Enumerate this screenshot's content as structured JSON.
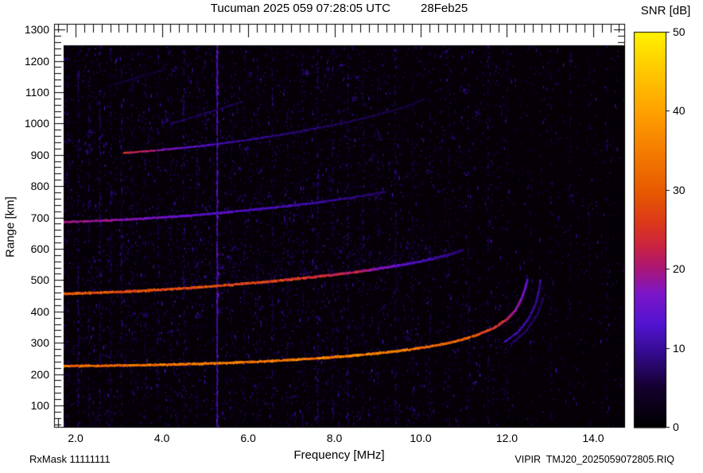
{
  "header": {
    "title": "Tucuman 2025 059 07:28:05 UTC",
    "date": "28Feb25"
  },
  "footer": {
    "rxmask": "RxMask 11111111",
    "file": "VIPIR  TMJ20_2025059072805.RIQ"
  },
  "chart_data": {
    "type": "heatmap",
    "title": "Tucuman 2025 059 07:28:05 UTC   28Feb25",
    "xlabel": "Frequency [MHz]",
    "ylabel": "Range [km]",
    "colorbar_label": "SNR [dB]",
    "xlim": [
      1.5,
      14.72
    ],
    "ylim": [
      31.5,
      1318
    ],
    "snr_range": [
      0,
      50
    ],
    "grid": false,
    "background": "black",
    "xticks": [
      {
        "v": 2,
        "label": "2.0"
      },
      {
        "v": 4,
        "label": "4.0"
      },
      {
        "v": 6,
        "label": "6.0"
      },
      {
        "v": 8,
        "label": "8.0"
      },
      {
        "v": 10,
        "label": "10.0"
      },
      {
        "v": 12,
        "label": "12.0"
      },
      {
        "v": 14,
        "label": "14.0"
      }
    ],
    "xtick_minor_start": 1.6,
    "xtick_minor_step": 0.2,
    "yticks": [
      {
        "v": 100,
        "label": "100"
      },
      {
        "v": 200,
        "label": "200"
      },
      {
        "v": 300,
        "label": "300"
      },
      {
        "v": 400,
        "label": "400"
      },
      {
        "v": 500,
        "label": "500"
      },
      {
        "v": 600,
        "label": "600"
      },
      {
        "v": 700,
        "label": "700"
      },
      {
        "v": 800,
        "label": "800"
      },
      {
        "v": 900,
        "label": "900"
      },
      {
        "v": 1000,
        "label": "1000"
      },
      {
        "v": 1100,
        "label": "1100"
      },
      {
        "v": 1200,
        "label": "1200"
      },
      {
        "v": 1300,
        "label": "1300"
      }
    ],
    "ytick_minor_start": 40,
    "ytick_minor_step": 20,
    "colorbar_ticks": [
      {
        "v": 0,
        "label": "0"
      },
      {
        "v": 10,
        "label": "10"
      },
      {
        "v": 20,
        "label": "20"
      },
      {
        "v": 30,
        "label": "30"
      },
      {
        "v": 40,
        "label": "40"
      },
      {
        "v": 50,
        "label": "50"
      }
    ],
    "colormap_stops": [
      [
        0.0,
        "#000000"
      ],
      [
        0.1,
        "#14002e"
      ],
      [
        0.18,
        "#320a86"
      ],
      [
        0.26,
        "#5214d2"
      ],
      [
        0.34,
        "#7e16c8"
      ],
      [
        0.4,
        "#aa1678"
      ],
      [
        0.46,
        "#cc2440"
      ],
      [
        0.52,
        "#dd3a1a"
      ],
      [
        0.6,
        "#e85c00"
      ],
      [
        0.7,
        "#f57d00"
      ],
      [
        0.8,
        "#ffa200"
      ],
      [
        0.9,
        "#ffc800"
      ],
      [
        1.0,
        "#fff200"
      ]
    ],
    "traces": [
      {
        "name": "fourth-hop-echo",
        "points": [
          [
            3.1,
            907
          ],
          [
            4.0,
            917
          ],
          [
            5.0,
            931
          ],
          [
            6.0,
            949
          ],
          [
            7.0,
            971
          ],
          [
            8.0,
            997
          ],
          [
            8.8,
            1022
          ],
          [
            9.6,
            1052
          ],
          [
            10.1,
            1080
          ]
        ],
        "snr_pts": [
          [
            3.1,
            24
          ],
          [
            4.2,
            16
          ],
          [
            5.5,
            10
          ],
          [
            7.0,
            8
          ],
          [
            10.1,
            5
          ]
        ],
        "thickness": 2.2,
        "density": 3
      },
      {
        "name": "faint-streak-a",
        "points": [
          [
            4.2,
            1000
          ],
          [
            5.9,
            1072
          ]
        ],
        "snr_pts": [
          [
            4.2,
            7
          ],
          [
            5.9,
            6
          ]
        ],
        "thickness": 1.6,
        "density": 2
      },
      {
        "name": "faint-streak-b",
        "points": [
          [
            2.9,
            1126
          ],
          [
            4.1,
            1176
          ]
        ],
        "snr_pts": [
          [
            2.9,
            6
          ],
          [
            4.1,
            5
          ]
        ],
        "thickness": 1.5,
        "density": 2
      },
      {
        "name": "third-hop-echo",
        "points": [
          [
            1.6,
            686
          ],
          [
            2.6,
            691
          ],
          [
            3.6,
            698
          ],
          [
            4.6,
            707
          ],
          [
            5.6,
            719
          ],
          [
            6.6,
            733
          ],
          [
            7.6,
            749
          ],
          [
            8.4,
            765
          ],
          [
            9.2,
            783
          ]
        ],
        "snr_pts": [
          [
            1.6,
            20
          ],
          [
            3.0,
            17
          ],
          [
            5.0,
            13
          ],
          [
            7.0,
            11
          ],
          [
            9.2,
            7
          ]
        ],
        "thickness": 2.8,
        "density": 4,
        "cloud": {
          "f0": 3.2,
          "f1": 9.0,
          "height": 22,
          "density": 0.4,
          "snr": [
            4,
            9
          ]
        }
      },
      {
        "name": "second-hop-echo",
        "points": [
          [
            1.6,
            457
          ],
          [
            2.5,
            461
          ],
          [
            3.5,
            467
          ],
          [
            4.5,
            475
          ],
          [
            5.5,
            485
          ],
          [
            6.5,
            497
          ],
          [
            7.5,
            511
          ],
          [
            8.5,
            527
          ],
          [
            9.3,
            544
          ],
          [
            10.0,
            561
          ],
          [
            10.6,
            580
          ],
          [
            11.0,
            598
          ]
        ],
        "snr_pts": [
          [
            1.6,
            29
          ],
          [
            5.0,
            28
          ],
          [
            7.0,
            26
          ],
          [
            8.5,
            21
          ],
          [
            9.5,
            14
          ],
          [
            11.0,
            7
          ]
        ],
        "thickness": 3.4,
        "density": 5,
        "cloud": {
          "f0": 4.0,
          "f1": 10.4,
          "height": 44,
          "density": 0.85,
          "snr": [
            5,
            11
          ]
        }
      },
      {
        "name": "first-hop-x-mode-2",
        "points": [
          [
            12.1,
            298
          ],
          [
            12.45,
            340
          ],
          [
            12.72,
            395
          ],
          [
            12.85,
            448
          ]
        ],
        "snr_pts": [
          [
            12.1,
            8
          ],
          [
            12.85,
            7
          ]
        ],
        "thickness": 1.6,
        "density": 2
      },
      {
        "name": "first-hop-x-mode-1",
        "points": [
          [
            11.95,
            305
          ],
          [
            12.25,
            335
          ],
          [
            12.5,
            378
          ],
          [
            12.66,
            424
          ],
          [
            12.74,
            468
          ],
          [
            12.78,
            505
          ]
        ],
        "snr_pts": [
          [
            11.95,
            11
          ],
          [
            12.78,
            9
          ]
        ],
        "thickness": 2.0,
        "density": 3
      },
      {
        "name": "first-hop-o-mode",
        "points": [
          [
            1.6,
            227
          ],
          [
            2.5,
            228
          ],
          [
            3.5,
            230
          ],
          [
            4.5,
            233
          ],
          [
            5.5,
            237
          ],
          [
            6.5,
            243
          ],
          [
            7.5,
            251
          ],
          [
            8.5,
            261
          ],
          [
            9.2,
            271
          ],
          [
            9.8,
            281
          ],
          [
            10.4,
            294
          ],
          [
            10.9,
            309
          ],
          [
            11.3,
            326
          ],
          [
            11.7,
            349
          ],
          [
            12.0,
            376
          ],
          [
            12.2,
            406
          ],
          [
            12.33,
            440
          ],
          [
            12.42,
            474
          ],
          [
            12.48,
            505
          ]
        ],
        "snr_pts": [
          [
            1.6,
            31
          ],
          [
            5.0,
            33
          ],
          [
            9.0,
            34
          ],
          [
            11.0,
            30
          ],
          [
            11.9,
            24
          ],
          [
            12.48,
            13
          ]
        ],
        "thickness": 3.2,
        "density": 5,
        "cloud": {
          "f0": 7.2,
          "f1": 11.6,
          "height": 24,
          "density": 0.3,
          "snr": [
            5,
            10
          ]
        }
      }
    ],
    "noise": {
      "speckle_count": 15000,
      "cluster_count": 70,
      "stripes": [
        [
          1.8,
          0.35
        ],
        [
          2.05,
          0.5
        ],
        [
          2.3,
          0.4
        ],
        [
          2.55,
          0.5
        ],
        [
          2.8,
          0.45
        ],
        [
          3.05,
          0.5
        ],
        [
          3.3,
          0.35
        ],
        [
          3.6,
          0.3
        ],
        [
          3.9,
          0.35
        ],
        [
          4.2,
          0.3
        ],
        [
          4.5,
          0.45
        ],
        [
          4.8,
          0.35
        ],
        [
          5.27,
          1.0
        ],
        [
          5.6,
          0.25
        ],
        [
          5.9,
          0.3
        ],
        [
          6.2,
          0.3
        ],
        [
          6.55,
          0.35
        ],
        [
          6.9,
          0.3
        ],
        [
          7.25,
          0.35
        ],
        [
          7.6,
          0.5
        ],
        [
          7.95,
          0.4
        ],
        [
          8.3,
          0.5
        ],
        [
          8.65,
          0.35
        ],
        [
          9.0,
          0.3
        ],
        [
          9.4,
          0.45
        ],
        [
          9.8,
          0.3
        ],
        [
          10.2,
          0.3
        ],
        [
          10.65,
          0.25
        ],
        [
          11.1,
          0.3
        ],
        [
          11.55,
          0.4
        ],
        [
          12.0,
          0.25
        ],
        [
          12.55,
          0.2
        ],
        [
          13.0,
          0.25
        ],
        [
          13.45,
          0.3
        ],
        [
          13.9,
          0.2
        ],
        [
          14.3,
          0.3
        ]
      ]
    }
  }
}
